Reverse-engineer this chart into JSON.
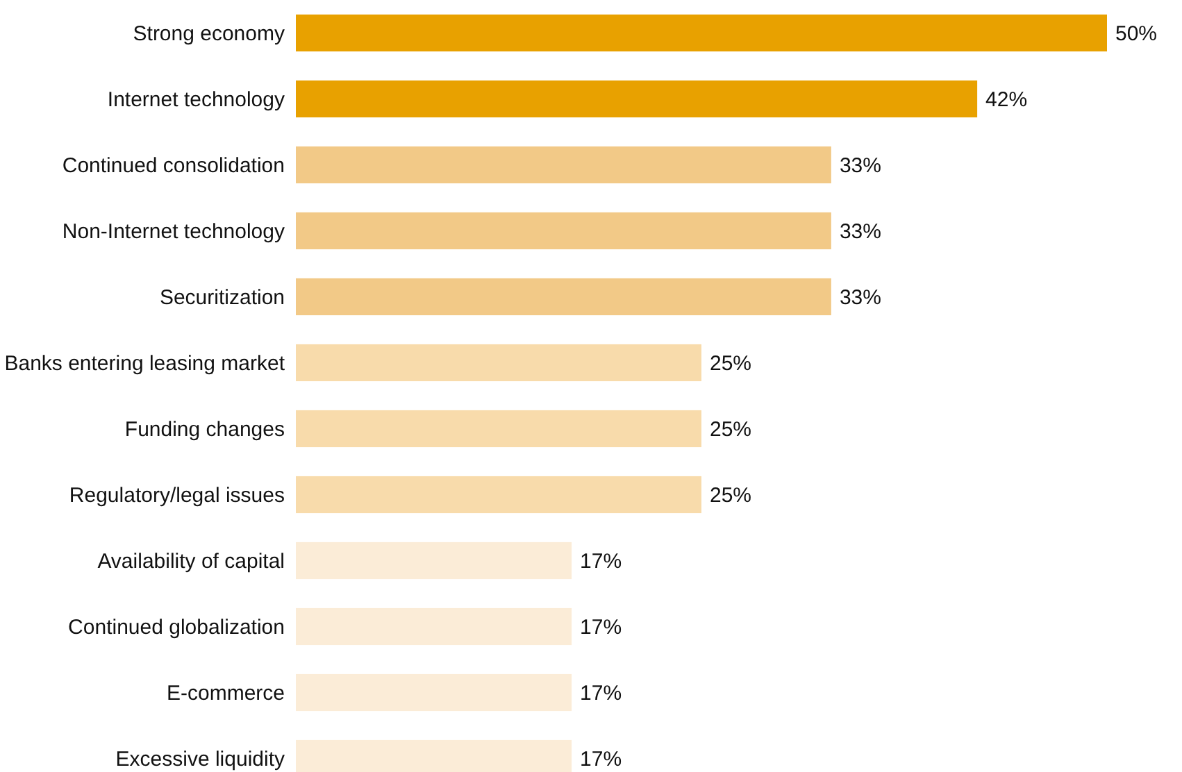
{
  "chart_data": {
    "type": "bar",
    "orientation": "horizontal",
    "categories": [
      "Strong economy",
      "Internet technology",
      "Continued consolidation",
      "Non-Internet technology",
      "Securitization",
      "Banks entering leasing market",
      "Funding changes",
      "Regulatory/legal issues",
      "Availability of capital",
      "Continued globalization",
      "E-commerce",
      "Excessive liquidity"
    ],
    "values": [
      50,
      42,
      33,
      33,
      33,
      25,
      25,
      25,
      17,
      17,
      17,
      17
    ],
    "value_labels": [
      "50%",
      "42%",
      "33%",
      "33%",
      "33%",
      "25%",
      "25%",
      "25%",
      "17%",
      "17%",
      "17%",
      "17%"
    ],
    "colors": [
      "#e8a100",
      "#e8a100",
      "#f2c987",
      "#f2c987",
      "#f2c987",
      "#f8dbab",
      "#f8dbab",
      "#f8dbab",
      "#fbecd7",
      "#fbecd7",
      "#fbecd7",
      "#fbecd7"
    ]
  }
}
